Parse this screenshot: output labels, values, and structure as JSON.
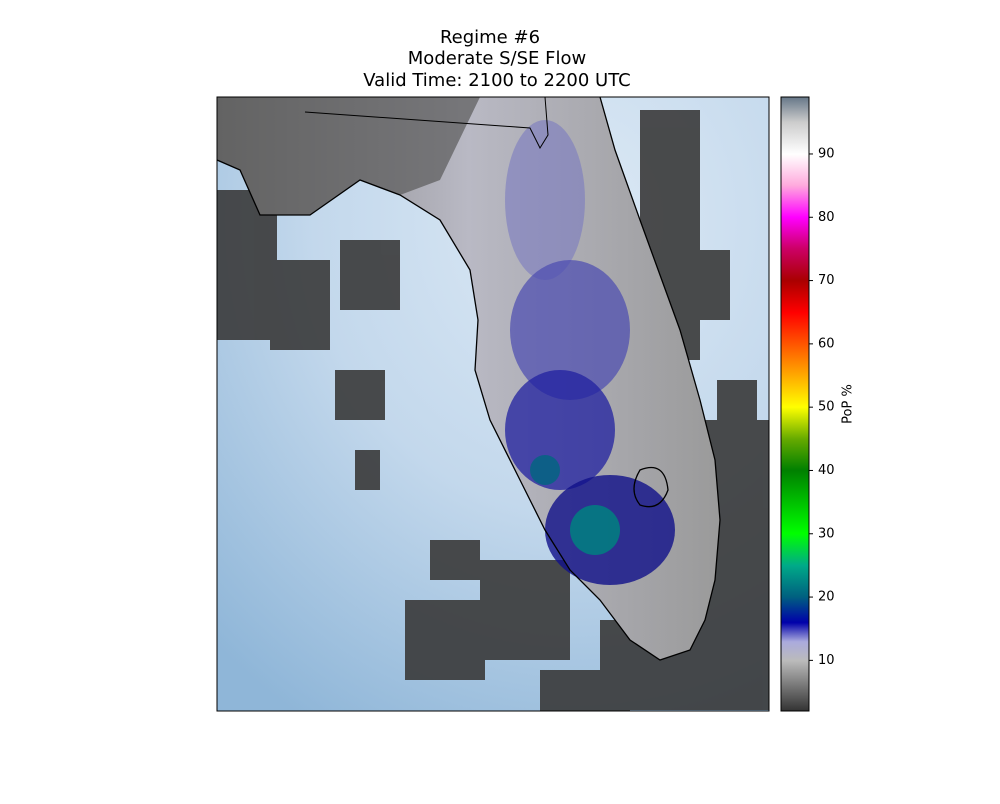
{
  "title": [
    "Regime #6",
    "Moderate S/SE Flow",
    "Valid Time: 2100 to 2200 UTC"
  ],
  "colorbar": {
    "label": "PoP %",
    "lim": [
      2,
      99
    ],
    "ticks": [
      10,
      20,
      30,
      40,
      50,
      60,
      70,
      80,
      90
    ]
  }
}
